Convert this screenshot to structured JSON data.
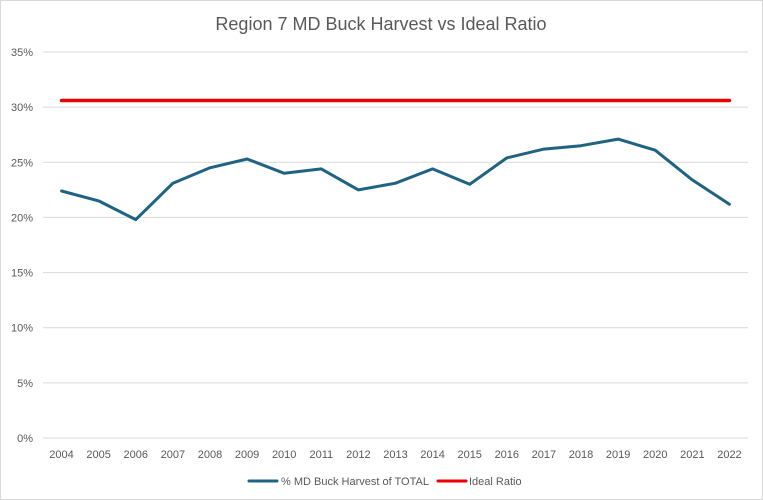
{
  "chart_data": {
    "type": "line",
    "title": "Region 7 MD Buck Harvest vs Ideal Ratio",
    "xlabel": "",
    "ylabel": "",
    "categories": [
      "2004",
      "2005",
      "2006",
      "2007",
      "2008",
      "2009",
      "2010",
      "2011",
      "2012",
      "2013",
      "2014",
      "2015",
      "2016",
      "2017",
      "2018",
      "2019",
      "2020",
      "2021",
      "2022"
    ],
    "ylim": [
      0,
      0.35
    ],
    "yticks": [
      {
        "value": 0,
        "label": "0%"
      },
      {
        "value": 0.05,
        "label": "5%"
      },
      {
        "value": 0.1,
        "label": "10%"
      },
      {
        "value": 0.15,
        "label": "15%"
      },
      {
        "value": 0.2,
        "label": "20%"
      },
      {
        "value": 0.25,
        "label": "25%"
      },
      {
        "value": 0.3,
        "label": "30%"
      },
      {
        "value": 0.35,
        "label": "35%"
      }
    ],
    "grid": true,
    "legend_position": "bottom",
    "series": [
      {
        "name": "% MD Buck Harvest of TOTAL",
        "color": "#1f6383",
        "values": [
          0.224,
          0.215,
          0.198,
          0.231,
          0.245,
          0.253,
          0.24,
          0.244,
          0.225,
          0.231,
          0.244,
          0.23,
          0.254,
          0.262,
          0.265,
          0.271,
          0.261,
          0.234,
          0.212
        ]
      },
      {
        "name": "Ideal Ratio",
        "color": "#ee0000",
        "values": [
          0.306,
          0.306,
          0.306,
          0.306,
          0.306,
          0.306,
          0.306,
          0.306,
          0.306,
          0.306,
          0.306,
          0.306,
          0.306,
          0.306,
          0.306,
          0.306,
          0.306,
          0.306,
          0.306
        ]
      }
    ]
  }
}
